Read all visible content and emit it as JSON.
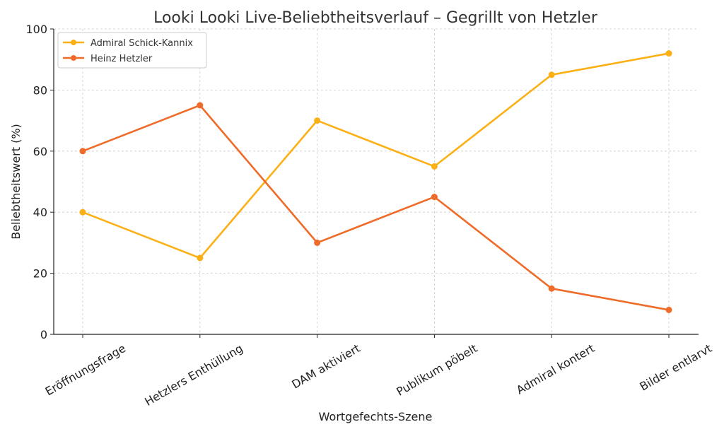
{
  "chart_data": {
    "type": "line",
    "title": "Looki Looki Live-Beliebtheitsverlauf – Gegrillt von Hetzler",
    "xlabel": "Wortgefechts-Szene",
    "ylabel": "Beliebtheitswert (%)",
    "ylim": [
      0,
      100
    ],
    "yticks": [
      0,
      20,
      40,
      60,
      80,
      100
    ],
    "grid": true,
    "legend_position": "top-left",
    "categories": [
      "Eröffnungsfrage",
      "Hetzlers Enthüllung",
      "DAM aktiviert",
      "Publikum pöbelt",
      "Admiral kontert",
      "Bilder entlarvt"
    ],
    "series": [
      {
        "name": "Admiral Schick-Kannix",
        "color": "#fbb016",
        "values": [
          40,
          25,
          70,
          55,
          85,
          92
        ]
      },
      {
        "name": "Heinz Hetzler",
        "color": "#ef6b29",
        "values": [
          60,
          75,
          30,
          45,
          15,
          8
        ]
      }
    ]
  }
}
